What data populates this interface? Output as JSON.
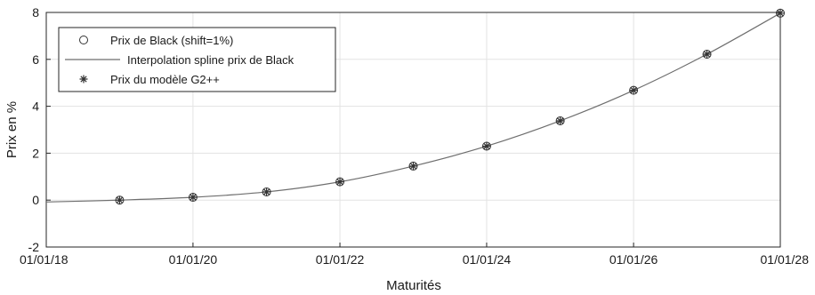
{
  "chart_data": {
    "type": "line",
    "xlabel": "Maturités",
    "ylabel": "Prix en %",
    "xlim": [
      "01/01/18",
      "01/01/28"
    ],
    "ylim": [
      -2,
      8
    ],
    "x_ticks": [
      "01/01/18",
      "01/01/20",
      "01/01/22",
      "01/01/24",
      "01/01/26",
      "01/01/28"
    ],
    "y_ticks": [
      -2,
      0,
      2,
      4,
      6,
      8
    ],
    "grid": true,
    "legend_position": "top-left",
    "series": [
      {
        "name": "Prix de Black (shift=1%)",
        "marker": "circle",
        "x": [
          "01/01/19",
          "01/01/20",
          "01/01/21",
          "01/01/22",
          "01/01/23",
          "01/01/24",
          "01/01/25",
          "01/01/26",
          "01/01/27",
          "01/01/28"
        ],
        "y": [
          0.0,
          0.12,
          0.35,
          0.78,
          1.45,
          2.3,
          3.38,
          4.68,
          6.22,
          7.97
        ]
      },
      {
        "name": "Interpolation spline prix de Black",
        "marker": "line",
        "x": [
          "01/01/18",
          "01/01/19",
          "01/01/20",
          "01/01/21",
          "01/01/22",
          "01/01/23",
          "01/01/24",
          "01/01/25",
          "01/01/26",
          "01/01/27",
          "01/01/28"
        ],
        "y": [
          -0.08,
          0.0,
          0.12,
          0.35,
          0.78,
          1.45,
          2.3,
          3.38,
          4.68,
          6.22,
          7.97
        ]
      },
      {
        "name": "Prix du modèle G2++",
        "marker": "star",
        "x": [
          "01/01/19",
          "01/01/20",
          "01/01/21",
          "01/01/22",
          "01/01/23",
          "01/01/24",
          "01/01/25",
          "01/01/26",
          "01/01/27",
          "01/01/28"
        ],
        "y": [
          0.0,
          0.12,
          0.35,
          0.78,
          1.45,
          2.3,
          3.38,
          4.68,
          6.22,
          7.97
        ]
      }
    ],
    "colors": {
      "line": "#6e6e6e",
      "markers": "#333333",
      "grid": "#e3e3e3",
      "axes": "#262626"
    }
  }
}
